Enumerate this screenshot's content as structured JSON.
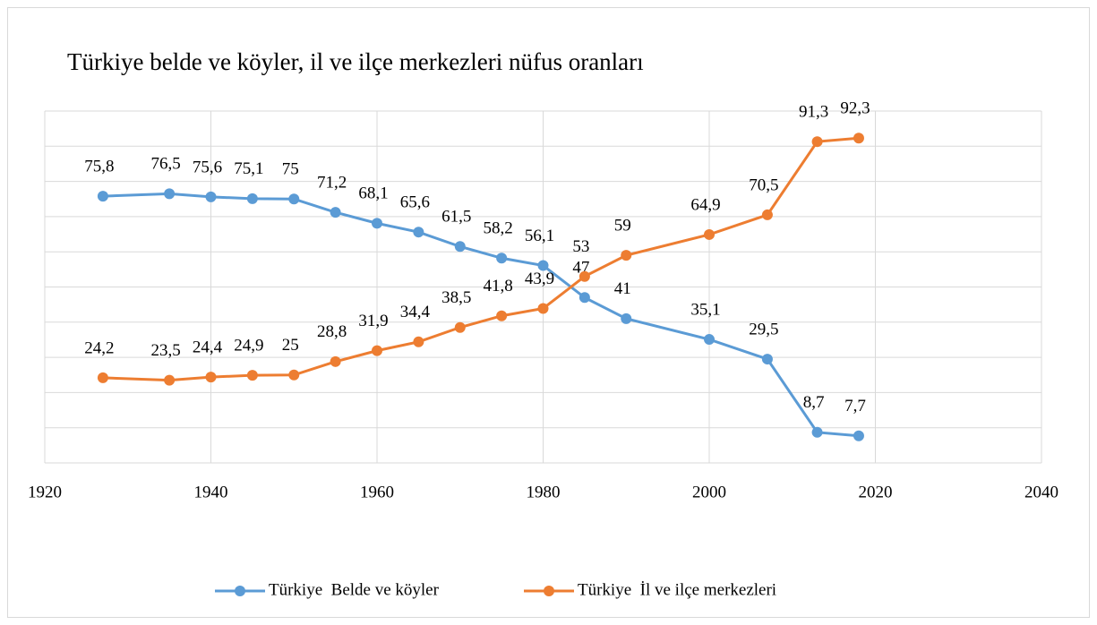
{
  "chart_data": {
    "type": "line",
    "title": "Türkiye belde ve köyler, il ve ilçe merkezleri nüfus oranları",
    "x": [
      1927,
      1935,
      1940,
      1945,
      1950,
      1955,
      1960,
      1965,
      1970,
      1975,
      1980,
      1985,
      1990,
      2000,
      2007,
      2013,
      2018
    ],
    "series": [
      {
        "name": "Türkiye  Belde ve köyler",
        "color": "#5b9bd5",
        "values": [
          75.8,
          76.5,
          75.6,
          75.1,
          75,
          71.2,
          68.1,
          65.6,
          61.5,
          58.2,
          56.1,
          47,
          41,
          35.1,
          29.5,
          8.7,
          7.7
        ],
        "value_labels": [
          "75,8",
          "76,5",
          "75,6",
          "75,1",
          "75",
          "71,2",
          "68,1",
          "65,6",
          "61,5",
          "58,2",
          "56,1",
          "47",
          "41",
          "35,1",
          "29,5",
          "8,7",
          "7,7"
        ]
      },
      {
        "name": "Türkiye  İl ve ilçe merkezleri",
        "color": "#ed7d31",
        "values": [
          24.2,
          23.5,
          24.4,
          24.9,
          25,
          28.8,
          31.9,
          34.4,
          38.5,
          41.8,
          43.9,
          53,
          59,
          64.9,
          70.5,
          91.3,
          92.3
        ],
        "value_labels": [
          "24,2",
          "23,5",
          "24,4",
          "24,9",
          "25",
          "28,8",
          "31,9",
          "34,4",
          "38,5",
          "41,8",
          "43,9",
          "53",
          "59",
          "64,9",
          "70,5",
          "91,3",
          "92,3"
        ]
      }
    ],
    "xlim": [
      1920,
      2040
    ],
    "xticks": [
      1920,
      1940,
      1960,
      1980,
      2000,
      2020,
      2040
    ],
    "ylim": [
      0,
      100
    ],
    "yticks": [
      0,
      10,
      20,
      30,
      40,
      50,
      60,
      70,
      80,
      90,
      100
    ],
    "grid": true,
    "legend": "bottom"
  }
}
